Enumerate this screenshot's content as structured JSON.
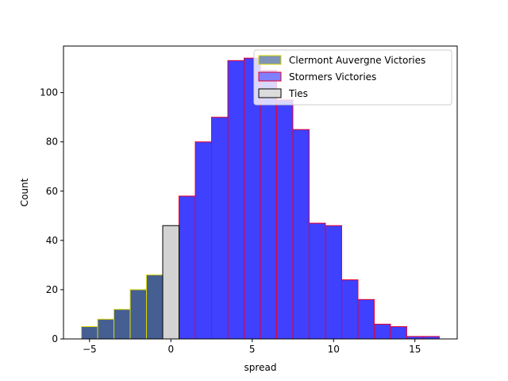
{
  "chart_data": {
    "type": "bar",
    "xlabel": "spread",
    "ylabel": "Count",
    "xlim": [
      -6.6,
      17.6
    ],
    "ylim": [
      0,
      118.9
    ],
    "xticks": [
      -5,
      0,
      5,
      10,
      15
    ],
    "yticks": [
      0,
      20,
      40,
      60,
      80,
      100
    ],
    "grid": false,
    "legend_position": "top-right",
    "series": [
      {
        "name": "Clermont Auvergne Victories",
        "fill": "#455f93",
        "legend_fill": "#7f94b5",
        "edge": "#d8d800",
        "bins": [
          {
            "x0": -5.5,
            "x1": -4.5,
            "count": 5
          },
          {
            "x0": -4.5,
            "x1": -3.5,
            "count": 8
          },
          {
            "x0": -3.5,
            "x1": -2.5,
            "count": 12
          },
          {
            "x0": -2.5,
            "x1": -1.5,
            "count": 20
          },
          {
            "x0": -1.5,
            "x1": -0.5,
            "count": 26
          }
        ]
      },
      {
        "name": "Stormers Victories",
        "fill": "#4040ff",
        "legend_fill": "#8080ff",
        "edge": "#e8002e",
        "bins": [
          {
            "x0": 0.5,
            "x1": 1.5,
            "count": 58
          },
          {
            "x0": 1.5,
            "x1": 2.5,
            "count": 80
          },
          {
            "x0": 2.5,
            "x1": 3.5,
            "count": 90
          },
          {
            "x0": 3.5,
            "x1": 4.5,
            "count": 113
          },
          {
            "x0": 4.5,
            "x1": 5.5,
            "count": 114
          },
          {
            "x0": 5.5,
            "x1": 6.5,
            "count": 109
          },
          {
            "x0": 6.5,
            "x1": 7.5,
            "count": 97
          },
          {
            "x0": 7.5,
            "x1": 8.5,
            "count": 85
          },
          {
            "x0": 8.5,
            "x1": 9.5,
            "count": 47
          },
          {
            "x0": 9.5,
            "x1": 10.5,
            "count": 46
          },
          {
            "x0": 10.5,
            "x1": 11.5,
            "count": 24
          },
          {
            "x0": 11.5,
            "x1": 12.5,
            "count": 16
          },
          {
            "x0": 12.5,
            "x1": 13.5,
            "count": 6
          },
          {
            "x0": 13.5,
            "x1": 14.5,
            "count": 5
          },
          {
            "x0": 14.5,
            "x1": 15.5,
            "count": 1
          },
          {
            "x0": 15.5,
            "x1": 16.5,
            "count": 1
          }
        ]
      },
      {
        "name": "Ties",
        "fill": "#d3d3d3",
        "legend_fill": "#dcdcdc",
        "edge": "#000000",
        "bins": [
          {
            "x0": -0.5,
            "x1": 0.5,
            "count": 46
          }
        ]
      }
    ]
  }
}
